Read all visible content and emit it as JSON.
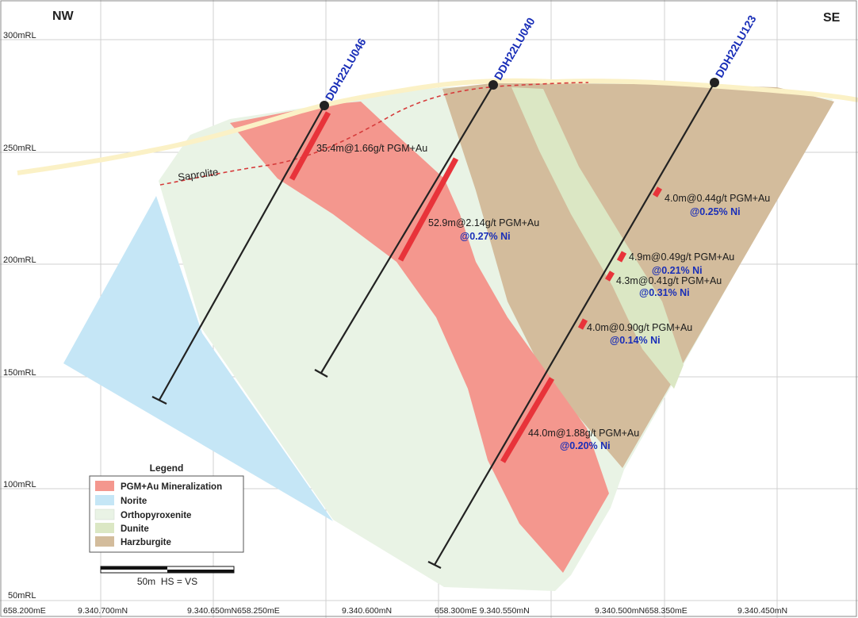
{
  "orientation": {
    "left": "NW",
    "right": "SE"
  },
  "elevation_labels": [
    "300mRL",
    "250mRL",
    "200mRL",
    "150mRL",
    "100mRL",
    "50mRL"
  ],
  "coordinate_labels": [
    "658.200mE",
    "9.340.700mN",
    "9.340.650mN658.250mE",
    "9.340.600mN",
    "658.300mE 9.340.550mN",
    "9.340.500mN658.350mE",
    "9.340.450mN"
  ],
  "surface_label": "Saprolite",
  "drillholes": [
    {
      "name": "DDH22LU046"
    },
    {
      "name": "DDH22LU040"
    },
    {
      "name": "DDH22LU123"
    }
  ],
  "intercepts": [
    {
      "grade": "35.4m@1.66g/t PGM+Au",
      "nickel": ""
    },
    {
      "grade": "52.9m@2.14g/t PGM+Au",
      "nickel": "@0.27% Ni"
    },
    {
      "grade": "4.0m@0.44g/t PGM+Au",
      "nickel": "@0.25% Ni"
    },
    {
      "grade": "4.9m@0.49g/t PGM+Au",
      "nickel": "@0.21% Ni"
    },
    {
      "grade": "4.3m@0.41g/t PGM+Au",
      "nickel": "@0.31% Ni"
    },
    {
      "grade": "4.0m@0.90g/t PGM+Au",
      "nickel": "@0.14% Ni"
    },
    {
      "grade": "44.0m@1.88g/t PGM+Au",
      "nickel": "@0.20% Ni"
    }
  ],
  "legend": {
    "title": "Legend",
    "items": [
      {
        "label": "PGM+Au Mineralization",
        "color": "#f4978e"
      },
      {
        "label": "Norite",
        "color": "#c5e6f6"
      },
      {
        "label": "Orthopyroxenite",
        "color": "#e9f3e5"
      },
      {
        "label": "Dunite",
        "color": "#dbe7c4"
      },
      {
        "label": "Harzburgite",
        "color": "#d3bc9c"
      }
    ]
  },
  "scale_bar": {
    "label": "50m  HS = VS"
  },
  "colors": {
    "mineralization": "#f4978e",
    "norite": "#c5e6f6",
    "orthopyroxenite": "#e9f3e5",
    "dunite": "#dbe7c4",
    "harzburgite": "#d3bc9c",
    "surface": "#fbf1c6",
    "drillhole": "#222222",
    "intercept": "#e8333a",
    "drillhole_label": "#1a2fb8",
    "nickel_label": "#1a2fb8",
    "saprolite_line": "#d63b3b"
  }
}
